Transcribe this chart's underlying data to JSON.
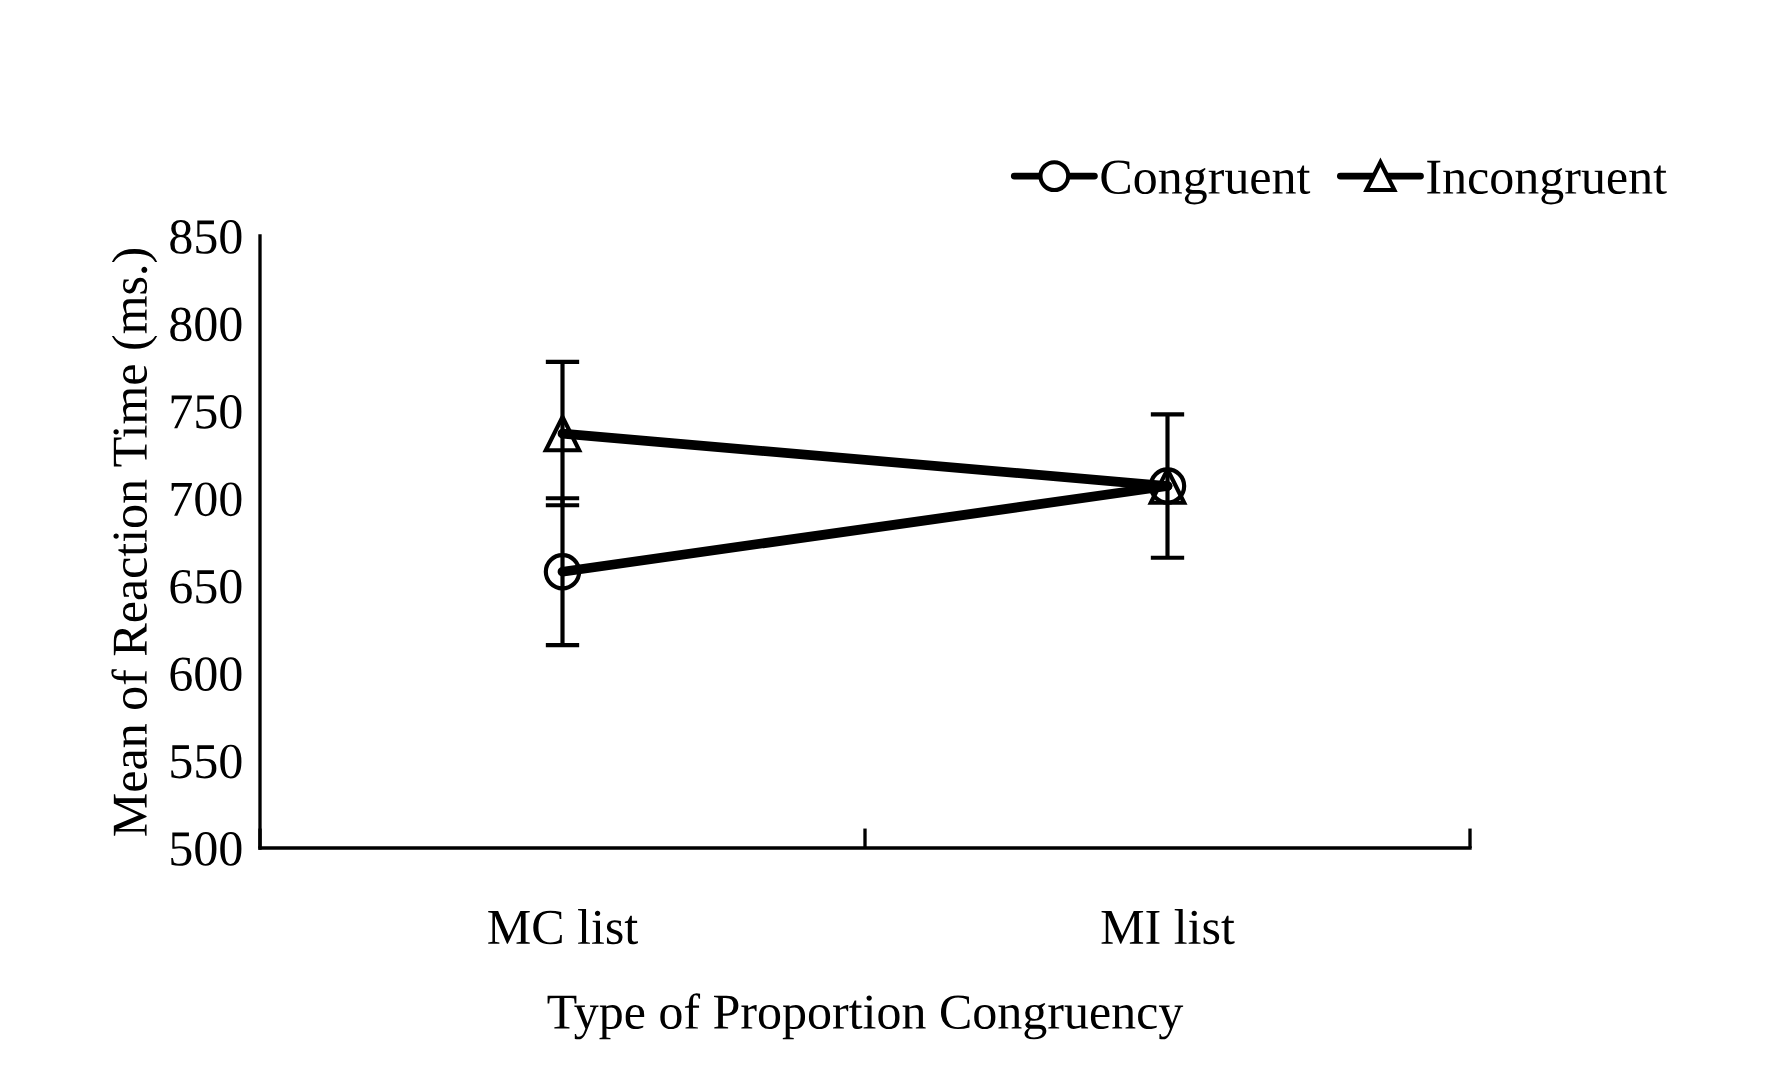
{
  "chart_data": {
    "type": "line",
    "xlabel": "Type of Proportion Congruency",
    "ylabel": "Mean of Reaction Time (ms.)",
    "categories": [
      "MC list",
      "MI list"
    ],
    "series": [
      {
        "name": "Congruent",
        "color": "#000000",
        "values": [
          658,
          707
        ],
        "errors": [
          42,
          41
        ],
        "marker": "circle"
      },
      {
        "name": "Incongruent",
        "color": "#000000",
        "values": [
          737,
          707
        ],
        "errors": [
          41,
          41
        ],
        "marker": "triangle"
      }
    ],
    "ylim": [
      500,
      850
    ],
    "yticks": [
      500,
      550,
      600,
      650,
      700,
      750,
      800,
      850
    ],
    "grid": false,
    "legend": "top right",
    "line_style": "solid"
  }
}
